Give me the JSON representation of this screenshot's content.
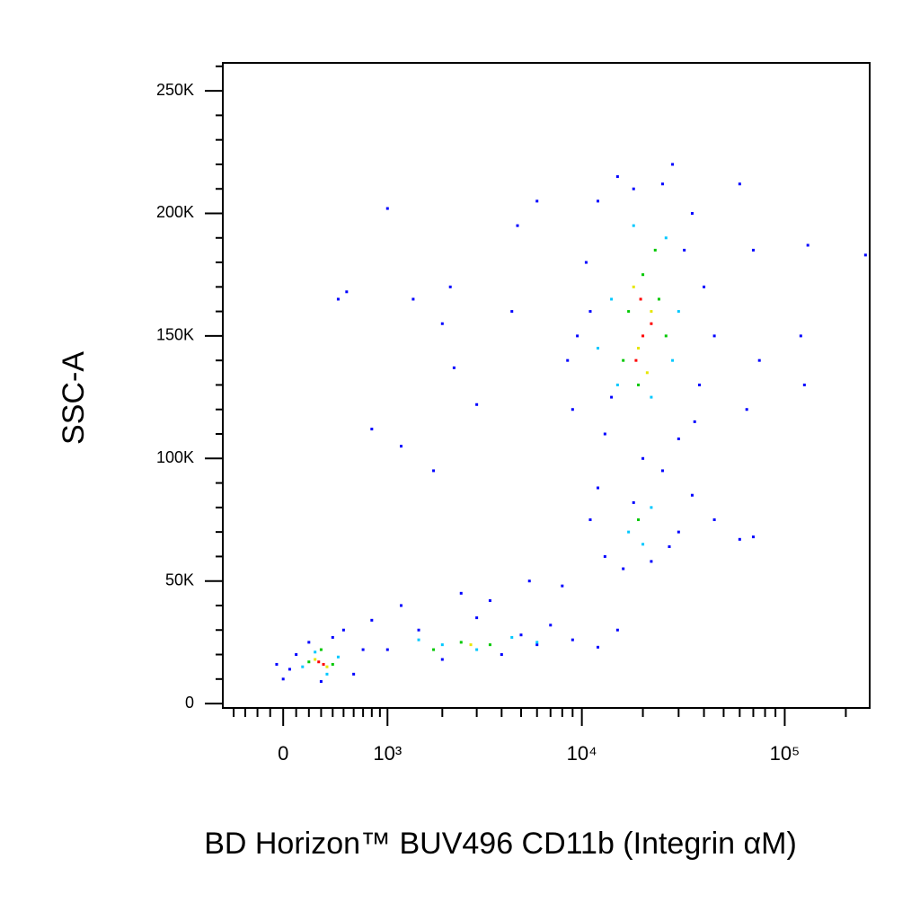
{
  "chart_data": {
    "type": "scatter",
    "xlabel": "BD Horizon™ BUV496 CD11b (Integrin αM)",
    "ylabel": "SSC-A",
    "xscale": "logicle",
    "xlim": [
      -500,
      262143
    ],
    "ylim": [
      -1800,
      261400
    ],
    "xticks": [
      0,
      {
        "value": 1000,
        "label": "10³"
      },
      {
        "value": 10000,
        "label": "10⁴"
      },
      {
        "value": 100000,
        "label": "10⁵"
      }
    ],
    "xminorticks": [
      -400,
      -300,
      -200,
      -100,
      100,
      200,
      300,
      400,
      500,
      600,
      700,
      800,
      900,
      2000,
      3000,
      4000,
      5000,
      6000,
      7000,
      8000,
      9000,
      20000,
      30000,
      40000,
      50000,
      60000,
      70000,
      80000,
      90000,
      200000
    ],
    "yticks": [
      0,
      {
        "value": 50000,
        "label": "50K"
      },
      {
        "value": 100000,
        "label": "100K"
      },
      {
        "value": 150000,
        "label": "150K"
      },
      {
        "value": 200000,
        "label": "200K"
      },
      {
        "value": 250000,
        "label": "250K"
      }
    ],
    "yminorticks": [
      10000,
      20000,
      30000,
      40000,
      60000,
      70000,
      80000,
      90000,
      110000,
      120000,
      130000,
      140000,
      160000,
      170000,
      180000,
      190000,
      210000,
      220000,
      230000,
      240000,
      260000
    ],
    "series": [
      {
        "color": "#0000ff",
        "x": [
          9000,
          10500,
          12000,
          15000,
          25000,
          35000,
          40000,
          38000,
          30000,
          20000,
          13000,
          9500,
          8500,
          11000,
          32000,
          45000,
          28000,
          18000,
          14000,
          36000,
          11000,
          13000,
          16000,
          22000,
          30000,
          35000,
          25000,
          12000,
          45000,
          60000,
          18000,
          27000,
          1000,
          1500,
          2000,
          3000,
          4000,
          5000,
          6000,
          7000,
          9000,
          12000,
          2500,
          1200,
          800,
          3500,
          5500,
          8000,
          15000,
          0,
          50,
          100,
          200,
          400,
          600,
          700,
          -50,
          300,
          500,
          1000,
          450,
          530,
          2000,
          2200,
          1400,
          3000,
          1800,
          800,
          1200,
          2300,
          4500,
          4800,
          6000,
          60000,
          70000,
          75000,
          130000,
          250000,
          120000,
          125000,
          65000,
          70000
        ],
        "y": [
          120000,
          180000,
          205000,
          215000,
          212000,
          200000,
          170000,
          130000,
          108000,
          100000,
          110000,
          150000,
          140000,
          160000,
          185000,
          150000,
          220000,
          210000,
          125000,
          115000,
          75000,
          60000,
          55000,
          58000,
          70000,
          85000,
          95000,
          88000,
          75000,
          67000,
          82000,
          64000,
          22000,
          30000,
          18000,
          35000,
          20000,
          28000,
          24000,
          32000,
          26000,
          23000,
          45000,
          40000,
          34000,
          42000,
          50000,
          48000,
          30000,
          10000,
          14000,
          20000,
          25000,
          27000,
          12000,
          22000,
          16000,
          9000,
          30000,
          202000,
          165000,
          168000,
          155000,
          170000,
          165000,
          122000,
          95000,
          112000,
          105000,
          137000,
          160000,
          195000,
          205000,
          212000,
          185000,
          140000,
          187000,
          183000,
          150000,
          130000,
          120000,
          68000
        ]
      },
      {
        "color": "#00c8ff",
        "x": [
          15000,
          22000,
          28000,
          14000,
          26000,
          18000,
          30000,
          12000,
          17000,
          22000,
          20000,
          2000,
          3000,
          4500,
          6000,
          1500,
          150,
          250,
          450,
          350
        ],
        "y": [
          130000,
          125000,
          140000,
          165000,
          190000,
          195000,
          160000,
          145000,
          70000,
          80000,
          65000,
          24000,
          22000,
          27000,
          25000,
          26000,
          15000,
          21000,
          19000,
          12000
        ]
      },
      {
        "color": "#00c800",
        "x": [
          16000,
          20000,
          24000,
          19000,
          23000,
          17000,
          26000,
          19000,
          2500,
          3500,
          1800,
          200,
          400,
          300
        ],
        "y": [
          140000,
          175000,
          165000,
          130000,
          185000,
          160000,
          150000,
          75000,
          25000,
          24000,
          22000,
          17000,
          16000,
          22000
        ]
      },
      {
        "color": "#e6e600",
        "x": [
          19000,
          22000,
          18000,
          21000,
          2800,
          250,
          350
        ],
        "y": [
          145000,
          160000,
          170000,
          135000,
          24000,
          18000,
          15000
        ]
      },
      {
        "color": "#ff0000",
        "x": [
          20000,
          18500,
          22000,
          19500,
          280,
          320
        ],
        "y": [
          150000,
          140000,
          155000,
          165000,
          17000,
          16000
        ]
      }
    ]
  }
}
